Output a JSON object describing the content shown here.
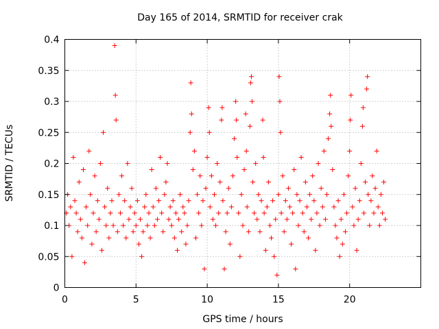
{
  "chart_data": {
    "type": "scatter",
    "title": "Day 165 of 2014, SRMTID for receiver crak",
    "xlabel": "GPS time / hours",
    "ylabel": "SRMTID / TECUs",
    "xlim": [
      0,
      25
    ],
    "ylim": [
      0,
      0.4
    ],
    "x_ticks": [
      "0",
      "5",
      "10",
      "15",
      "20"
    ],
    "y_ticks": [
      "0",
      "0.05",
      "0.1",
      "0.15",
      "0.2",
      "0.25",
      "0.3",
      "0.35",
      "0.4"
    ],
    "grid": true,
    "marker": "plus",
    "color": "#ff0000",
    "series": [
      {
        "points": [
          [
            0.1,
            0.12
          ],
          [
            0.2,
            0.15
          ],
          [
            0.3,
            0.1
          ],
          [
            0.4,
            0.13
          ],
          [
            0.5,
            0.05
          ],
          [
            0.6,
            0.21
          ],
          [
            0.7,
            0.14
          ],
          [
            0.8,
            0.12
          ],
          [
            0.9,
            0.09
          ],
          [
            1.0,
            0.17
          ],
          [
            1.1,
            0.11
          ],
          [
            1.2,
            0.08
          ],
          [
            1.3,
            0.19
          ],
          [
            1.4,
            0.04
          ],
          [
            1.5,
            0.13
          ],
          [
            1.6,
            0.1
          ],
          [
            1.7,
            0.22
          ],
          [
            1.8,
            0.15
          ],
          [
            1.9,
            0.07
          ],
          [
            2.0,
            0.12
          ],
          [
            2.1,
            0.18
          ],
          [
            2.2,
            0.09
          ],
          [
            2.3,
            0.14
          ],
          [
            2.4,
            0.11
          ],
          [
            2.5,
            0.2
          ],
          [
            2.6,
            0.06
          ],
          [
            2.7,
            0.25
          ],
          [
            2.8,
            0.13
          ],
          [
            2.9,
            0.1
          ],
          [
            3.0,
            0.16
          ],
          [
            3.1,
            0.08
          ],
          [
            3.2,
            0.12
          ],
          [
            3.3,
            0.14
          ],
          [
            3.4,
            0.1
          ],
          [
            3.5,
            0.39
          ],
          [
            3.55,
            0.31
          ],
          [
            3.6,
            0.27
          ],
          [
            3.7,
            0.09
          ],
          [
            3.8,
            0.15
          ],
          [
            3.9,
            0.12
          ],
          [
            4.0,
            0.18
          ],
          [
            4.1,
            0.1
          ],
          [
            4.2,
            0.14
          ],
          [
            4.3,
            0.08
          ],
          [
            4.4,
            0.2
          ],
          [
            4.5,
            0.11
          ],
          [
            4.6,
            0.13
          ],
          [
            4.7,
            0.16
          ],
          [
            4.8,
            0.09
          ],
          [
            4.9,
            0.12
          ],
          [
            5.0,
            0.1
          ],
          [
            5.1,
            0.14
          ],
          [
            5.2,
            0.07
          ],
          [
            5.3,
            0.11
          ],
          [
            5.4,
            0.05
          ],
          [
            5.5,
            0.09
          ],
          [
            5.6,
            0.13
          ],
          [
            5.7,
            0.15
          ],
          [
            5.8,
            0.1
          ],
          [
            5.9,
            0.12
          ],
          [
            6.0,
            0.08
          ],
          [
            6.1,
            0.19
          ],
          [
            6.2,
            0.13
          ],
          [
            6.3,
            0.1
          ],
          [
            6.4,
            0.16
          ],
          [
            6.5,
            0.11
          ],
          [
            6.6,
            0.14
          ],
          [
            6.7,
            0.21
          ],
          [
            6.8,
            0.12
          ],
          [
            6.9,
            0.09
          ],
          [
            7.0,
            0.15
          ],
          [
            7.1,
            0.17
          ],
          [
            7.2,
            0.2
          ],
          [
            7.3,
            0.11
          ],
          [
            7.4,
            0.13
          ],
          [
            7.5,
            0.1
          ],
          [
            7.6,
            0.14
          ],
          [
            7.7,
            0.08
          ],
          [
            7.8,
            0.12
          ],
          [
            7.9,
            0.06
          ],
          [
            8.0,
            0.11
          ],
          [
            8.1,
            0.15
          ],
          [
            8.2,
            0.09
          ],
          [
            8.3,
            0.13
          ],
          [
            8.4,
            0.12
          ],
          [
            8.5,
            0.07
          ],
          [
            8.6,
            0.1
          ],
          [
            8.7,
            0.14
          ],
          [
            8.8,
            0.25
          ],
          [
            8.85,
            0.33
          ],
          [
            8.9,
            0.28
          ],
          [
            9.0,
            0.19
          ],
          [
            9.1,
            0.22
          ],
          [
            9.2,
            0.08
          ],
          [
            9.3,
            0.15
          ],
          [
            9.4,
            0.12
          ],
          [
            9.5,
            0.18
          ],
          [
            9.6,
            0.1
          ],
          [
            9.7,
            0.14
          ],
          [
            9.8,
            0.03
          ],
          [
            9.9,
            0.16
          ],
          [
            10.0,
            0.21
          ],
          [
            10.1,
            0.29
          ],
          [
            10.15,
            0.25
          ],
          [
            10.2,
            0.13
          ],
          [
            10.3,
            0.18
          ],
          [
            10.4,
            0.11
          ],
          [
            10.5,
            0.15
          ],
          [
            10.6,
            0.1
          ],
          [
            10.7,
            0.2
          ],
          [
            10.8,
            0.12
          ],
          [
            10.9,
            0.17
          ],
          [
            11.0,
            0.27
          ],
          [
            11.05,
            0.29
          ],
          [
            11.1,
            0.14
          ],
          [
            11.2,
            0.03
          ],
          [
            11.3,
            0.09
          ],
          [
            11.4,
            0.12
          ],
          [
            11.5,
            0.16
          ],
          [
            11.6,
            0.07
          ],
          [
            11.7,
            0.13
          ],
          [
            11.8,
            0.18
          ],
          [
            11.9,
            0.24
          ],
          [
            12.0,
            0.3
          ],
          [
            12.05,
            0.27
          ],
          [
            12.1,
            0.21
          ],
          [
            12.2,
            0.12
          ],
          [
            12.3,
            0.05
          ],
          [
            12.4,
            0.15
          ],
          [
            12.5,
            0.1
          ],
          [
            12.6,
            0.19
          ],
          [
            12.7,
            0.28
          ],
          [
            12.75,
            0.22
          ],
          [
            12.8,
            0.13
          ],
          [
            12.9,
            0.09
          ],
          [
            13.0,
            0.26
          ],
          [
            13.05,
            0.33
          ],
          [
            13.1,
            0.34
          ],
          [
            13.15,
            0.3
          ],
          [
            13.2,
            0.17
          ],
          [
            13.3,
            0.12
          ],
          [
            13.4,
            0.2
          ],
          [
            13.5,
            0.11
          ],
          [
            13.6,
            0.15
          ],
          [
            13.7,
            0.09
          ],
          [
            13.8,
            0.14
          ],
          [
            13.9,
            0.27
          ],
          [
            13.95,
            0.21
          ],
          [
            14.0,
            0.12
          ],
          [
            14.1,
            0.06
          ],
          [
            14.2,
            0.13
          ],
          [
            14.3,
            0.17
          ],
          [
            14.4,
            0.1
          ],
          [
            14.5,
            0.08
          ],
          [
            14.6,
            0.14
          ],
          [
            14.7,
            0.05
          ],
          [
            14.8,
            0.11
          ],
          [
            14.9,
            0.02
          ],
          [
            15.0,
            0.15
          ],
          [
            15.05,
            0.34
          ],
          [
            15.1,
            0.3
          ],
          [
            15.15,
            0.25
          ],
          [
            15.2,
            0.12
          ],
          [
            15.3,
            0.18
          ],
          [
            15.4,
            0.09
          ],
          [
            15.5,
            0.14
          ],
          [
            15.6,
            0.11
          ],
          [
            15.7,
            0.16
          ],
          [
            15.8,
            0.13
          ],
          [
            15.9,
            0.07
          ],
          [
            16.0,
            0.12
          ],
          [
            16.1,
            0.19
          ],
          [
            16.2,
            0.03
          ],
          [
            16.3,
            0.15
          ],
          [
            16.4,
            0.1
          ],
          [
            16.5,
            0.14
          ],
          [
            16.6,
            0.21
          ],
          [
            16.7,
            0.12
          ],
          [
            16.8,
            0.09
          ],
          [
            16.9,
            0.17
          ],
          [
            17.0,
            0.13
          ],
          [
            17.1,
            0.08
          ],
          [
            17.2,
            0.15
          ],
          [
            17.3,
            0.11
          ],
          [
            17.4,
            0.18
          ],
          [
            17.5,
            0.14
          ],
          [
            17.6,
            0.06
          ],
          [
            17.7,
            0.12
          ],
          [
            17.8,
            0.2
          ],
          [
            17.9,
            0.1
          ],
          [
            18.0,
            0.16
          ],
          [
            18.1,
            0.13
          ],
          [
            18.2,
            0.22
          ],
          [
            18.3,
            0.11
          ],
          [
            18.4,
            0.15
          ],
          [
            18.5,
            0.24
          ],
          [
            18.6,
            0.28
          ],
          [
            18.65,
            0.31
          ],
          [
            18.7,
            0.26
          ],
          [
            18.8,
            0.19
          ],
          [
            18.9,
            0.13
          ],
          [
            19.0,
            0.1
          ],
          [
            19.1,
            0.08
          ],
          [
            19.2,
            0.14
          ],
          [
            19.3,
            0.05
          ],
          [
            19.4,
            0.11
          ],
          [
            19.5,
            0.07
          ],
          [
            19.6,
            0.15
          ],
          [
            19.7,
            0.09
          ],
          [
            19.8,
            0.12
          ],
          [
            19.9,
            0.18
          ],
          [
            20.0,
            0.22
          ],
          [
            20.05,
            0.27
          ],
          [
            20.1,
            0.31
          ],
          [
            20.2,
            0.13
          ],
          [
            20.3,
            0.1
          ],
          [
            20.4,
            0.16
          ],
          [
            20.5,
            0.06
          ],
          [
            20.6,
            0.11
          ],
          [
            20.7,
            0.14
          ],
          [
            20.8,
            0.2
          ],
          [
            20.9,
            0.26
          ],
          [
            20.95,
            0.29
          ],
          [
            21.0,
            0.12
          ],
          [
            21.1,
            0.17
          ],
          [
            21.2,
            0.32
          ],
          [
            21.25,
            0.34
          ],
          [
            21.3,
            0.15
          ],
          [
            21.4,
            0.1
          ],
          [
            21.5,
            0.14
          ],
          [
            21.6,
            0.18
          ],
          [
            21.7,
            0.12
          ],
          [
            21.8,
            0.16
          ],
          [
            21.9,
            0.22
          ],
          [
            22.0,
            0.13
          ],
          [
            22.1,
            0.1
          ],
          [
            22.2,
            0.15
          ],
          [
            22.3,
            0.12
          ],
          [
            22.4,
            0.17
          ],
          [
            22.5,
            0.11
          ]
        ]
      }
    ]
  }
}
